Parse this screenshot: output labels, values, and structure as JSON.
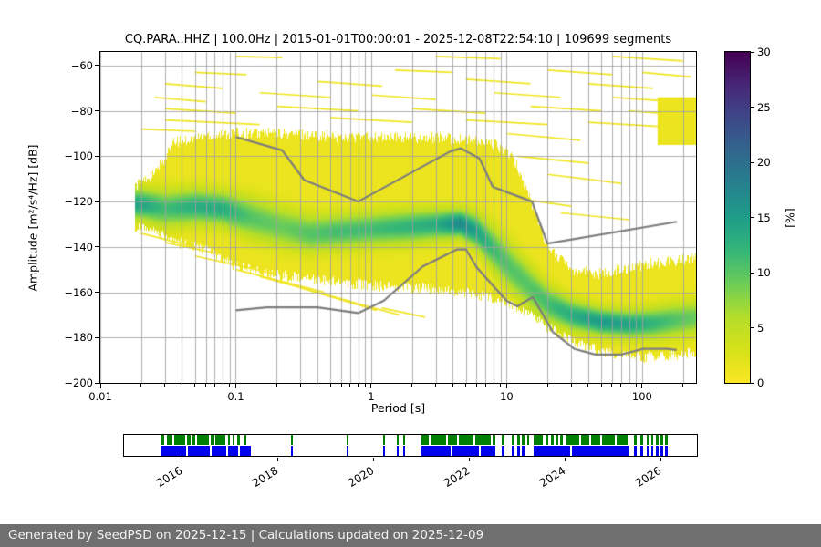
{
  "footer": {
    "text": "Generated by SeedPSD on 2025-12-15 | Calculations updated on 2025-12-09"
  },
  "chart_data": {
    "type": "heatmap",
    "title": "CQ.PARA..HHZ | 100.0Hz | 2015-01-01T00:00:01 - 2025-12-08T22:54:10 | 109699 segments",
    "xlabel": "Period [s]",
    "ylabel": "Amplitude [m²/s⁴/Hz] [dB]",
    "x_scale": "log",
    "xlim": [
      0.01,
      250
    ],
    "ylim": [
      -200,
      -54
    ],
    "xticks": [
      0.01,
      0.1,
      1,
      10,
      100
    ],
    "xtick_labels": [
      "0.01",
      "0.1",
      "1",
      "10",
      "100"
    ],
    "yticks": [
      -200,
      -180,
      -160,
      -140,
      -120,
      -100,
      -80,
      -60
    ],
    "ytick_labels": [
      "−200",
      "−180",
      "−160",
      "−140",
      "−120",
      "−100",
      "−80",
      "−60"
    ],
    "grid": true,
    "colorbar": {
      "label": "[%]",
      "min": 0,
      "max": 30,
      "ticks": [
        0,
        5,
        10,
        15,
        20,
        25,
        30
      ],
      "tick_labels": [
        "0",
        "5",
        "10",
        "15",
        "20",
        "25",
        "30"
      ],
      "colormap": "viridis-reversed (0=yellow, 30=dark purple)"
    },
    "noise_models": {
      "color": "#7d7d7d",
      "high": [
        [
          0.1,
          -91.5
        ],
        [
          0.22,
          -97.4
        ],
        [
          0.32,
          -110.5
        ],
        [
          0.8,
          -120.0
        ],
        [
          3.8,
          -98.0
        ],
        [
          4.6,
          -96.5
        ],
        [
          6.3,
          -101.0
        ],
        [
          7.9,
          -113.5
        ],
        [
          15.4,
          -120.0
        ],
        [
          20.0,
          -138.5
        ],
        [
          180.0,
          -128.9
        ]
      ],
      "low": [
        [
          0.1,
          -168.0
        ],
        [
          0.17,
          -166.7
        ],
        [
          0.4,
          -166.7
        ],
        [
          0.8,
          -169.2
        ],
        [
          1.24,
          -163.7
        ],
        [
          2.4,
          -148.6
        ],
        [
          4.3,
          -141.1
        ],
        [
          5.0,
          -141.1
        ],
        [
          6.0,
          -149.0
        ],
        [
          10.0,
          -163.8
        ],
        [
          12.0,
          -166.2
        ],
        [
          15.6,
          -162.1
        ],
        [
          21.9,
          -177.5
        ],
        [
          31.6,
          -185.0
        ],
        [
          45.0,
          -187.5
        ],
        [
          70.0,
          -187.5
        ],
        [
          101.0,
          -185.0
        ],
        [
          154.0,
          -185.0
        ],
        [
          180.0,
          -185.5
        ]
      ]
    },
    "cloud_period_min": 0.018,
    "base_pct": 1.3,
    "envelope": {
      "periods": [
        0.018,
        0.025,
        0.035,
        0.06,
        0.1,
        0.2,
        0.4,
        0.8,
        1.5,
        3,
        5,
        8,
        10,
        12,
        15,
        20,
        30,
        50,
        100,
        180,
        250
      ],
      "top_db": [
        -113,
        -108,
        -94,
        -91,
        -90,
        -90,
        -91,
        -92,
        -92,
        -92,
        -93,
        -95,
        -98,
        -105,
        -120,
        -140,
        -150,
        -152,
        -148,
        -146,
        -145
      ],
      "bottom_db": [
        -131,
        -133,
        -137,
        -141,
        -148,
        -152,
        -154,
        -156,
        -157,
        -158,
        -160,
        -162,
        -164,
        -166,
        -169,
        -175,
        -181,
        -186,
        -188,
        -187,
        -186
      ]
    },
    "psd_band": {
      "periods": [
        0.02,
        0.03,
        0.05,
        0.08,
        0.13,
        0.22,
        0.35,
        0.6,
        1.0,
        1.8,
        3.0,
        4.5,
        6.0,
        8.0,
        11,
        15,
        20,
        30,
        50,
        80,
        120,
        180,
        250
      ],
      "center_db": [
        -121,
        -123,
        -122,
        -123,
        -127,
        -131,
        -134,
        -133,
        -132,
        -131,
        -130,
        -129.5,
        -133,
        -141,
        -150,
        -158,
        -165,
        -170,
        -173,
        -174,
        -173.5,
        -172,
        -171
      ],
      "peak_pct": [
        13,
        10,
        12,
        12,
        9,
        8,
        9,
        10,
        10,
        11,
        12,
        16,
        13,
        10,
        9,
        9,
        10,
        12,
        14,
        13,
        11,
        9,
        8
      ],
      "width_db": [
        4.5,
        5.5,
        5,
        5,
        6,
        6,
        5.5,
        5,
        5,
        5,
        4.5,
        4,
        5,
        6.5,
        7,
        6.5,
        5.5,
        4.5,
        4,
        4,
        4.5,
        5,
        5
      ]
    },
    "streaks": [
      [
        0.1,
        -56,
        0.22,
        -56.5
      ],
      [
        3,
        -56,
        9,
        -57
      ],
      [
        60,
        -56,
        200,
        -58
      ],
      [
        0.05,
        -63,
        0.12,
        -64
      ],
      [
        1.5,
        -62,
        4,
        -63
      ],
      [
        20,
        -62,
        60,
        -64
      ],
      [
        100,
        -63,
        230,
        -65
      ],
      [
        0.03,
        -68,
        0.08,
        -70
      ],
      [
        0.4,
        -67,
        1.2,
        -69
      ],
      [
        5,
        -66,
        15,
        -68
      ],
      [
        40,
        -68,
        120,
        -70
      ],
      [
        0.025,
        -74,
        0.06,
        -76
      ],
      [
        0.15,
        -72,
        0.5,
        -74
      ],
      [
        1,
        -73,
        3,
        -75
      ],
      [
        8,
        -72,
        25,
        -74
      ],
      [
        60,
        -74,
        180,
        -76
      ],
      [
        0.03,
        -79,
        0.1,
        -81
      ],
      [
        0.2,
        -78,
        0.8,
        -80
      ],
      [
        2,
        -79,
        7,
        -81
      ],
      [
        15,
        -78,
        50,
        -80
      ],
      [
        80,
        -80,
        240,
        -82
      ],
      [
        0.03,
        -84,
        0.15,
        -86
      ],
      [
        0.5,
        -83,
        2,
        -85
      ],
      [
        5,
        -84,
        20,
        -86
      ],
      [
        40,
        -85,
        150,
        -87
      ],
      [
        150,
        -83,
        245,
        -85
      ],
      [
        0.02,
        -88,
        0.05,
        -89
      ],
      [
        10,
        -90,
        35,
        -93
      ],
      [
        12,
        -100,
        40,
        -103
      ],
      [
        20,
        -108,
        70,
        -112
      ],
      [
        10,
        -118,
        30,
        -122
      ],
      [
        25,
        -125,
        80,
        -128
      ],
      [
        0.05,
        -144,
        0.2,
        -152
      ],
      [
        0.1,
        -150,
        0.45,
        -160
      ],
      [
        0.15,
        -153,
        0.7,
        -164
      ],
      [
        0.3,
        -158,
        1.1,
        -168
      ],
      [
        0.6,
        -163,
        1.6,
        -170
      ],
      [
        1.2,
        -167,
        2.5,
        -171
      ],
      [
        0.02,
        -134,
        0.05,
        -140
      ],
      [
        0.03,
        -138,
        0.09,
        -144
      ]
    ],
    "patches": [
      [
        130,
        -74,
        250,
        -95
      ]
    ],
    "timeline": {
      "range": [
        2014.78,
        2026.78
      ],
      "tick_years": [
        2016,
        2018,
        2020,
        2022,
        2024,
        2026
      ],
      "tick_labels": [
        "2016",
        "2018",
        "2020",
        "2022",
        "2024",
        "2026"
      ],
      "rows": [
        {
          "name": "green",
          "color": "#008000",
          "segments": [
            [
              2015.55,
              2015.63
            ],
            [
              2015.67,
              2015.8
            ],
            [
              2015.84,
              2016.06
            ],
            [
              2016.1,
              2016.17
            ],
            [
              2016.2,
              2016.28
            ],
            [
              2016.31,
              2016.56
            ],
            [
              2016.6,
              2016.67
            ],
            [
              2016.7,
              2016.9
            ],
            [
              2016.95,
              2017.0
            ],
            [
              2017.05,
              2017.1
            ],
            [
              2017.15,
              2017.2
            ],
            [
              2017.3,
              2017.35
            ],
            [
              2018.28,
              2018.32
            ],
            [
              2019.45,
              2019.49
            ],
            [
              2020.2,
              2020.24
            ],
            [
              2020.5,
              2020.54
            ],
            [
              2020.62,
              2020.66
            ],
            [
              2021.0,
              2021.16
            ],
            [
              2021.2,
              2021.52
            ],
            [
              2021.56,
              2021.76
            ],
            [
              2021.8,
              2022.1
            ],
            [
              2022.14,
              2022.46
            ],
            [
              2022.5,
              2022.56
            ],
            [
              2022.7,
              2022.75
            ],
            [
              2022.9,
              2022.95
            ],
            [
              2023.02,
              2023.07
            ],
            [
              2023.12,
              2023.17
            ],
            [
              2023.22,
              2023.27
            ],
            [
              2023.36,
              2023.56
            ],
            [
              2023.6,
              2023.66
            ],
            [
              2023.72,
              2023.78
            ],
            [
              2023.82,
              2023.87
            ],
            [
              2023.92,
              2023.97
            ],
            [
              2024.02,
              2024.32
            ],
            [
              2024.36,
              2024.52
            ],
            [
              2024.56,
              2024.76
            ],
            [
              2024.8,
              2025.06
            ],
            [
              2025.1,
              2025.32
            ],
            [
              2025.46,
              2025.51
            ],
            [
              2025.6,
              2025.65
            ],
            [
              2025.72,
              2025.77
            ],
            [
              2025.82,
              2025.87
            ],
            [
              2025.92,
              2025.97
            ],
            [
              2026.02,
              2026.07
            ],
            [
              2026.12,
              2026.17
            ]
          ]
        },
        {
          "name": "blue",
          "color": "#0000ee",
          "segments": [
            [
              2015.55,
              2016.08
            ],
            [
              2016.12,
              2016.58
            ],
            [
              2016.62,
              2016.92
            ],
            [
              2016.96,
              2017.16
            ],
            [
              2017.2,
              2017.44
            ],
            [
              2018.28,
              2018.32
            ],
            [
              2019.45,
              2019.49
            ],
            [
              2020.2,
              2020.24
            ],
            [
              2020.5,
              2020.54
            ],
            [
              2020.62,
              2020.66
            ],
            [
              2021.0,
              2021.62
            ],
            [
              2021.66,
              2022.22
            ],
            [
              2022.26,
              2022.56
            ],
            [
              2022.7,
              2022.75
            ],
            [
              2022.9,
              2022.95
            ],
            [
              2023.02,
              2023.07
            ],
            [
              2023.12,
              2023.17
            ],
            [
              2023.36,
              2024.12
            ],
            [
              2024.16,
              2025.36
            ],
            [
              2025.46,
              2025.51
            ],
            [
              2025.6,
              2025.65
            ],
            [
              2025.72,
              2025.77
            ],
            [
              2025.82,
              2025.87
            ],
            [
              2025.92,
              2025.97
            ],
            [
              2026.02,
              2026.07
            ],
            [
              2026.12,
              2026.17
            ]
          ]
        }
      ]
    }
  }
}
